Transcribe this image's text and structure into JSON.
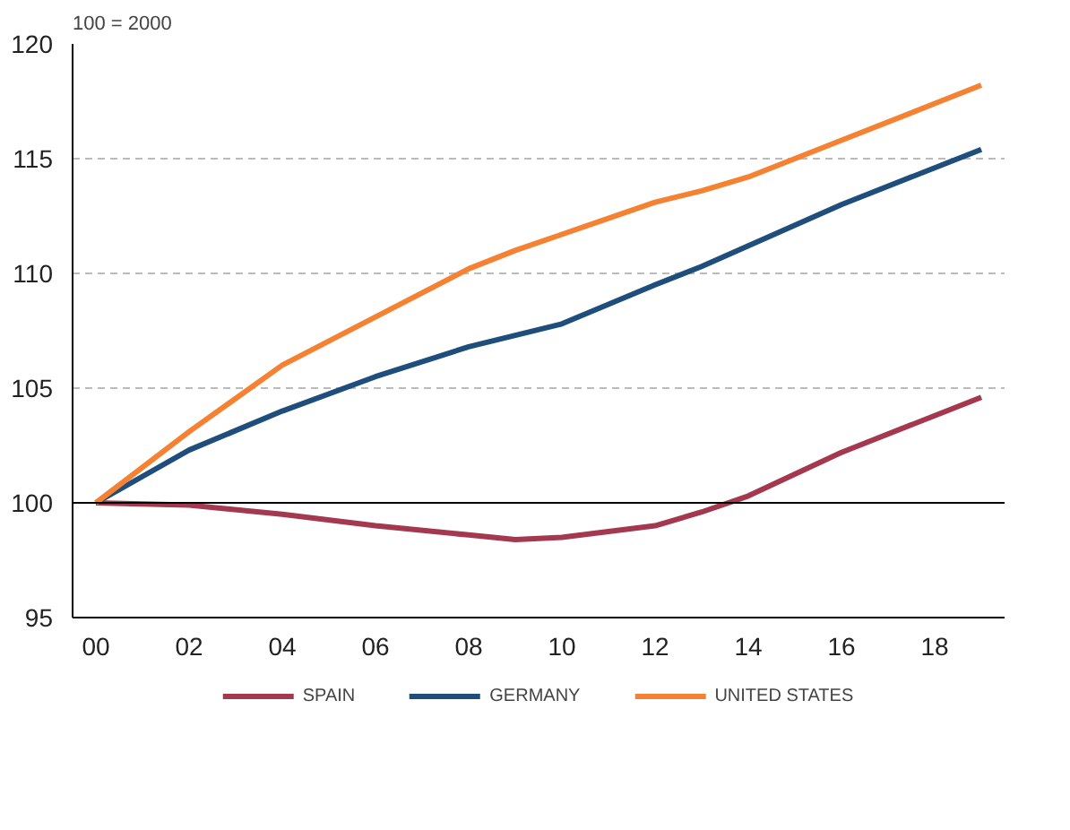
{
  "chart_data": {
    "type": "line",
    "ylabel": "100 = 2000",
    "x": [
      0,
      2,
      4,
      6,
      8,
      9,
      10,
      12,
      13,
      14,
      16,
      18,
      19
    ],
    "series": [
      {
        "name": "SPAIN",
        "color": "#a3384f",
        "values": [
          100,
          99.9,
          99.5,
          99.0,
          98.6,
          98.4,
          98.5,
          99.0,
          99.6,
          100.3,
          102.2,
          103.8,
          104.6
        ]
      },
      {
        "name": "GERMANY",
        "color": "#1f4e7d",
        "values": [
          100,
          102.3,
          104.0,
          105.5,
          106.8,
          107.3,
          107.8,
          109.5,
          110.3,
          111.2,
          113.0,
          114.6,
          115.4
        ]
      },
      {
        "name": "UNITED STATES",
        "color": "#f58232",
        "values": [
          100,
          103.1,
          106.0,
          108.1,
          110.2,
          111.0,
          111.7,
          113.1,
          113.6,
          114.2,
          115.8,
          117.4,
          118.2
        ]
      }
    ],
    "xlim": [
      -0.5,
      19.5
    ],
    "ylim": [
      95,
      120
    ],
    "xticks": [
      {
        "value": 0,
        "label": "00"
      },
      {
        "value": 2,
        "label": "02"
      },
      {
        "value": 4,
        "label": "04"
      },
      {
        "value": 6,
        "label": "06"
      },
      {
        "value": 8,
        "label": "08"
      },
      {
        "value": 10,
        "label": "10"
      },
      {
        "value": 12,
        "label": "12"
      },
      {
        "value": 14,
        "label": "14"
      },
      {
        "value": 16,
        "label": "16"
      },
      {
        "value": 18,
        "label": "18"
      }
    ],
    "yticks": [
      95,
      100,
      105,
      110,
      115,
      120
    ],
    "ref_lines": [
      {
        "axis": "y",
        "value": 100,
        "label": null,
        "color": "#000000"
      }
    ],
    "grid": "y",
    "legend": "bottom",
    "marker": "none",
    "line_style": "solid"
  }
}
